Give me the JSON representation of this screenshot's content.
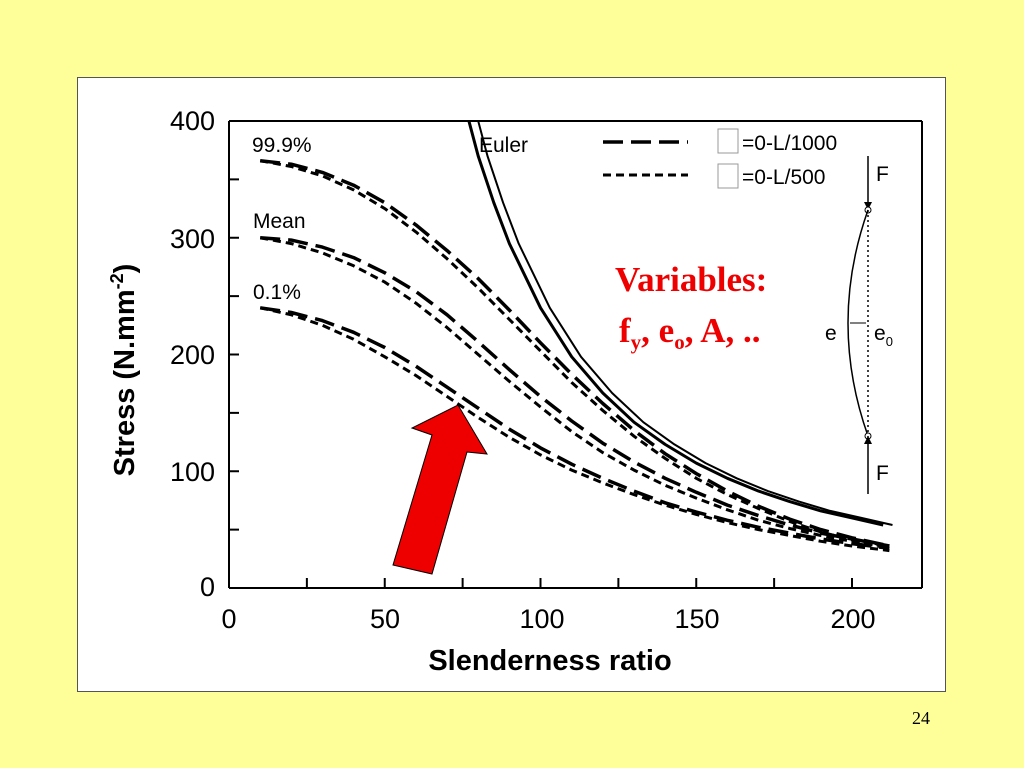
{
  "slide": {
    "page_number": "24"
  },
  "chart_data": {
    "type": "line",
    "xlabel": "Slenderness ratio",
    "ylabel": "Stress (N.mm",
    "ylabel_sup": "-2",
    "ylabel_close": ")",
    "xlim": [
      0,
      220
    ],
    "ylim": [
      0,
      400
    ],
    "x_ticks": [
      "0",
      "50",
      "100",
      "150",
      "200"
    ],
    "y_ticks": [
      "0",
      "100",
      "200",
      "300",
      "400"
    ],
    "grid": false,
    "legend_position": "top-right",
    "legend": [
      {
        "style": "long-dash",
        "label": "=0-L/1000"
      },
      {
        "style": "short-dash",
        "label": "=0-L/500"
      }
    ],
    "curve_labels": {
      "high": "99.9%",
      "mean": "Mean",
      "low": "0.1%",
      "euler": "Euler"
    },
    "euler": {
      "name": "Euler",
      "x": [
        77,
        80,
        85,
        90,
        100,
        110,
        120,
        130,
        140,
        150,
        160,
        170,
        180,
        190,
        200,
        210
      ],
      "y": [
        400,
        370,
        330,
        295,
        240,
        198,
        167,
        142,
        123,
        107,
        94,
        83,
        74,
        66,
        60,
        54
      ]
    },
    "series": [
      {
        "group": "99.9%",
        "style": "long-dash",
        "x": [
          10,
          20,
          30,
          40,
          50,
          60,
          70,
          80,
          90,
          100,
          110,
          120,
          130,
          140,
          150,
          160,
          170,
          180,
          190,
          200,
          212
        ],
        "y": [
          366,
          363,
          356,
          345,
          330,
          311,
          289,
          265,
          238,
          210,
          183,
          158,
          135,
          115,
          98,
          83,
          70,
          59,
          50,
          43,
          36
        ]
      },
      {
        "group": "99.9%",
        "style": "short-dash",
        "x": [
          10,
          20,
          30,
          40,
          50,
          60,
          70,
          80,
          90,
          100,
          110,
          120,
          130,
          140,
          150,
          160,
          170,
          180,
          190,
          200,
          212
        ],
        "y": [
          366,
          361,
          353,
          341,
          325,
          305,
          282,
          257,
          230,
          203,
          176,
          152,
          130,
          111,
          94,
          80,
          68,
          57,
          48,
          41,
          35
        ]
      },
      {
        "group": "Mean",
        "style": "long-dash",
        "x": [
          10,
          20,
          30,
          40,
          50,
          60,
          70,
          80,
          90,
          100,
          110,
          120,
          130,
          140,
          150,
          160,
          170,
          180,
          190,
          200,
          212
        ],
        "y": [
          300,
          298,
          292,
          283,
          270,
          254,
          234,
          211,
          187,
          164,
          143,
          124,
          108,
          94,
          82,
          71,
          62,
          54,
          47,
          42,
          36
        ]
      },
      {
        "group": "Mean",
        "style": "short-dash",
        "x": [
          10,
          20,
          30,
          40,
          50,
          60,
          70,
          80,
          90,
          100,
          110,
          120,
          130,
          140,
          150,
          160,
          170,
          180,
          190,
          200,
          212
        ],
        "y": [
          300,
          295,
          287,
          276,
          262,
          244,
          223,
          200,
          177,
          155,
          134,
          116,
          101,
          88,
          77,
          67,
          58,
          51,
          45,
          40,
          34
        ]
      },
      {
        "group": "0.1%",
        "style": "long-dash",
        "x": [
          10,
          20,
          30,
          40,
          50,
          60,
          70,
          80,
          90,
          100,
          110,
          120,
          130,
          140,
          150,
          160,
          170,
          180,
          190,
          200,
          212
        ],
        "y": [
          240,
          236,
          229,
          219,
          206,
          190,
          172,
          154,
          136,
          120,
          106,
          94,
          83,
          73,
          65,
          58,
          52,
          47,
          42,
          38,
          34
        ]
      },
      {
        "group": "0.1%",
        "style": "short-dash",
        "x": [
          10,
          20,
          30,
          40,
          50,
          60,
          70,
          80,
          90,
          100,
          110,
          120,
          130,
          140,
          150,
          160,
          170,
          180,
          190,
          200,
          212
        ],
        "y": [
          240,
          234,
          225,
          213,
          198,
          182,
          164,
          146,
          129,
          114,
          101,
          90,
          80,
          71,
          63,
          56,
          50,
          45,
          40,
          36,
          32
        ]
      }
    ],
    "annotation": {
      "line1": "Variables:",
      "line2_parts": [
        "f",
        "y",
        ", e",
        "o",
        ", A, .."
      ],
      "color": "#ee0000"
    },
    "arrow": {
      "color": "#ee0000",
      "target": [
        73,
        155
      ]
    },
    "diagram": {
      "force_top": "F",
      "force_bottom": "F",
      "e_label": "e",
      "eo_label": "e",
      "eo_sub": "0"
    }
  },
  "colors": {
    "background": "#ffff99",
    "panel": "#ffffff",
    "accent": "#ee0000"
  }
}
